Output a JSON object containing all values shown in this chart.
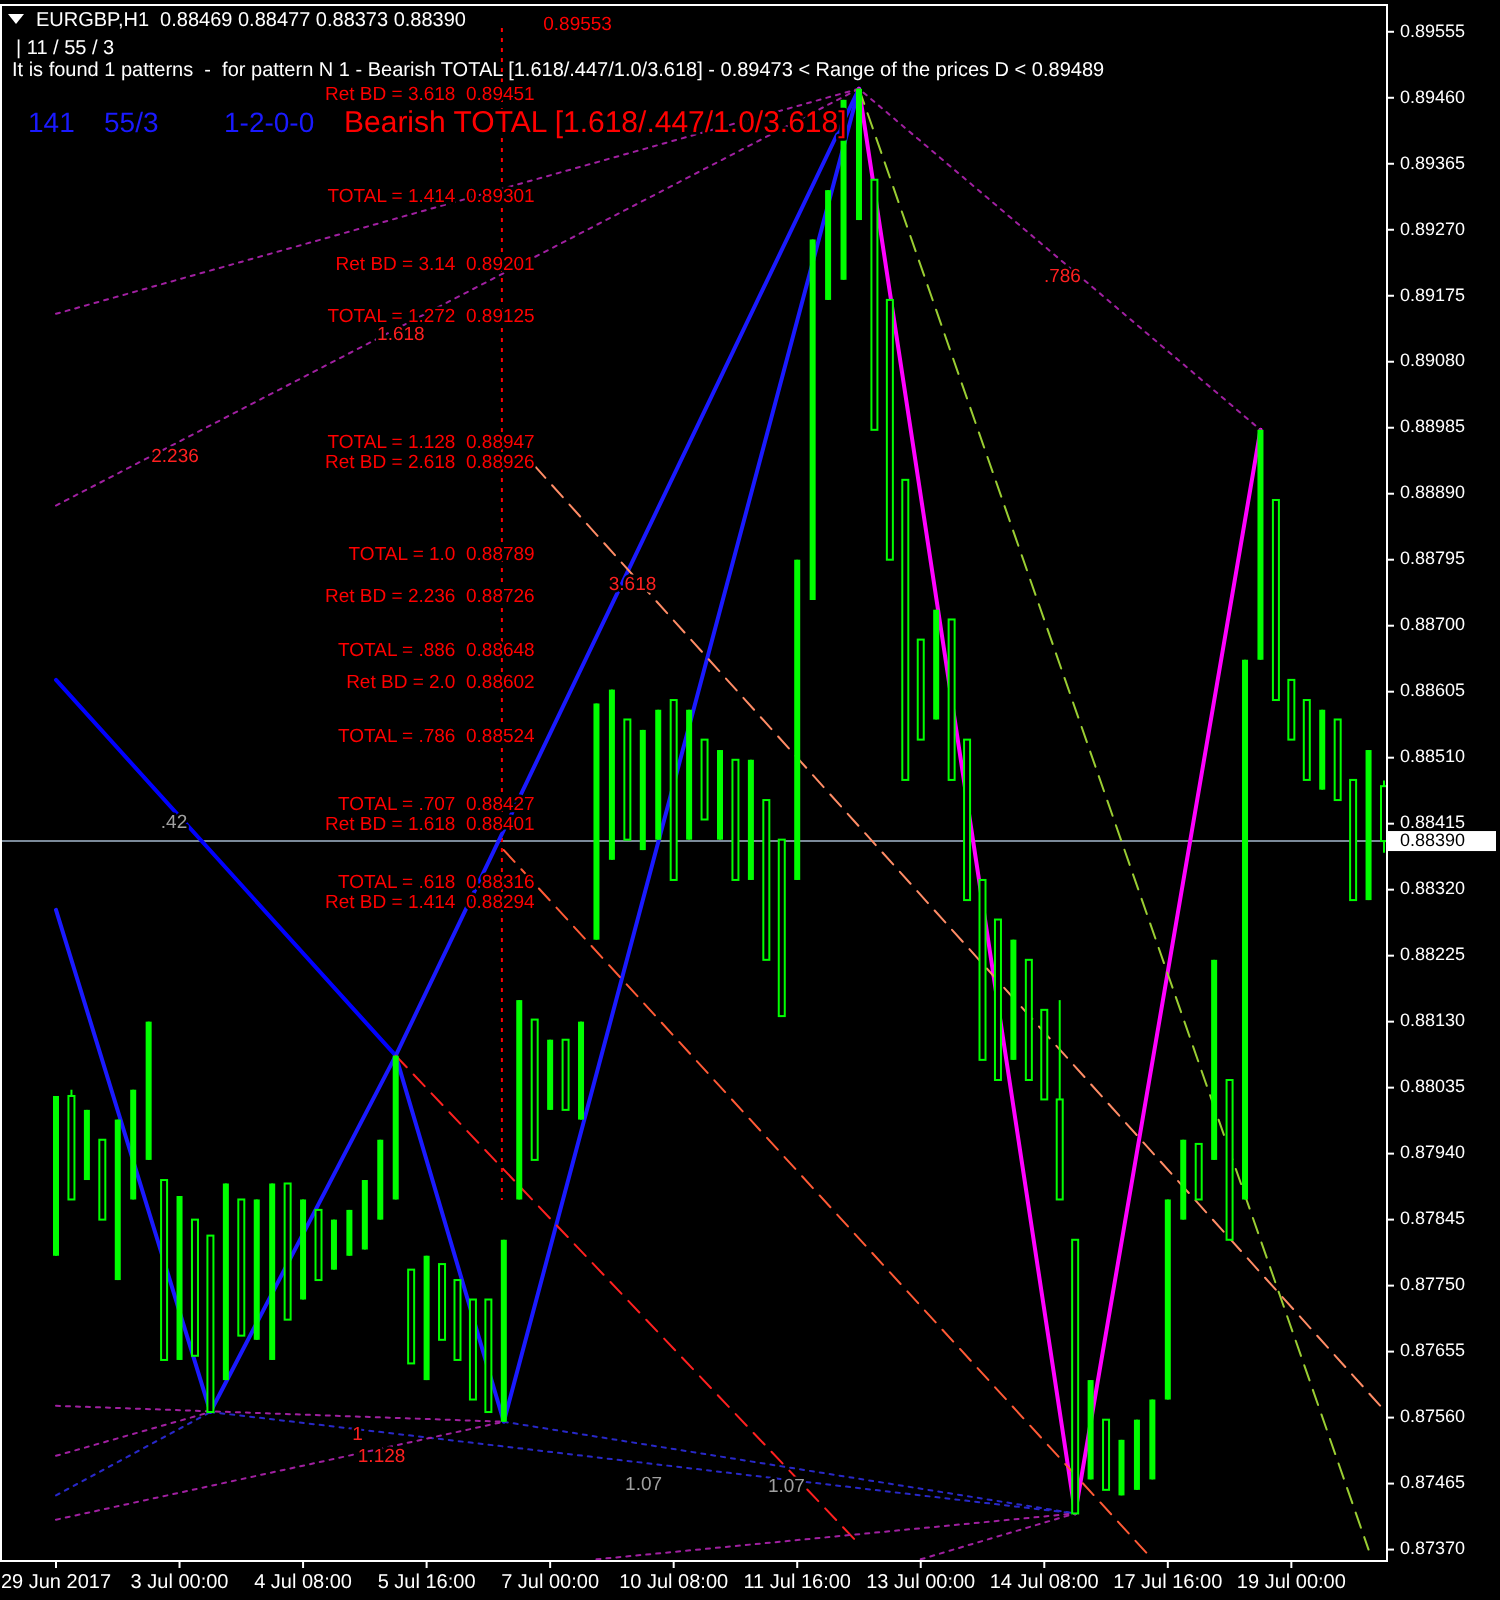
{
  "chart_data": {
    "type": "candlestick",
    "title": "EURGBP,H1  0.88469 0.88477 0.88373 0.88390",
    "subtitle": "| 11 / 55 / 3",
    "color": "#00ff00",
    "categories": [
      "29 Jun 2017",
      null,
      null,
      null,
      null,
      null,
      null,
      null,
      "3 Jul 00:00",
      null,
      null,
      null,
      null,
      null,
      null,
      null,
      "4 Jul 08:00",
      null,
      null,
      null,
      null,
      null,
      null,
      null,
      "5 Jul 16:00",
      null,
      null,
      null,
      null,
      null,
      null,
      null,
      "7 Jul 00:00",
      null,
      null,
      null,
      null,
      null,
      null,
      null,
      "10 Jul 08:00",
      null,
      null,
      null,
      null,
      null,
      null,
      null,
      "11 Jul 16:00",
      null,
      null,
      null,
      null,
      null,
      null,
      null,
      "13 Jul 00:00",
      null,
      null,
      null,
      null,
      null,
      null,
      null,
      "14 Jul 08:00",
      null,
      null,
      null,
      null,
      null,
      null,
      null,
      "17 Jul 16:00",
      null,
      null,
      null,
      null,
      null,
      null,
      null,
      "19 Jul 00:00",
      null,
      null,
      null,
      null,
      null,
      null
    ],
    "ohlc": [
      [
        0.87793,
        0.88023,
        0.87793,
        0.88023
      ],
      [
        0.88023,
        0.88032,
        0.87874,
        0.87874
      ],
      [
        0.87902,
        0.88003,
        0.87902,
        0.88003
      ],
      [
        0.8796,
        0.8796,
        0.87845,
        0.87845
      ],
      [
        0.87758,
        0.87989,
        0.87758,
        0.87989
      ],
      [
        0.87874,
        0.88032,
        0.87874,
        0.88032
      ],
      [
        0.87931,
        0.8813,
        0.87931,
        0.8813
      ],
      [
        0.87902,
        0.87902,
        0.87643,
        0.87643
      ],
      [
        0.87643,
        0.87879,
        0.87643,
        0.87879
      ],
      [
        0.87845,
        0.87845,
        0.87649,
        0.87649
      ],
      [
        0.87822,
        0.87822,
        0.87568,
        0.87568
      ],
      [
        0.87614,
        0.87897,
        0.87614,
        0.87897
      ],
      [
        0.87874,
        0.87874,
        0.87678,
        0.87678
      ],
      [
        0.87672,
        0.87874,
        0.87672,
        0.87874
      ],
      [
        0.87643,
        0.87897,
        0.87643,
        0.87897
      ],
      [
        0.87897,
        0.87897,
        0.87701,
        0.87701
      ],
      [
        0.8773,
        0.87874,
        0.8773,
        0.87874
      ],
      [
        0.87859,
        0.87859,
        0.87758,
        0.87758
      ],
      [
        0.87773,
        0.87845,
        0.87773,
        0.87845
      ],
      [
        0.87793,
        0.87859,
        0.87793,
        0.87859
      ],
      [
        0.87802,
        0.87902,
        0.87802,
        0.87902
      ],
      [
        0.87845,
        0.8796,
        0.87845,
        0.8796
      ],
      [
        0.87874,
        0.88081,
        0.87874,
        0.88081
      ],
      [
        0.87773,
        0.87773,
        0.87638,
        0.87638
      ],
      [
        0.87614,
        0.87793,
        0.87614,
        0.87793
      ],
      [
        0.87781,
        0.87781,
        0.87672,
        0.87672
      ],
      [
        0.87758,
        0.87758,
        0.87643,
        0.87643
      ],
      [
        0.8773,
        0.8773,
        0.87586,
        0.87586
      ],
      [
        0.8773,
        0.8773,
        0.87568,
        0.87568
      ],
      [
        0.87554,
        0.87816,
        0.87554,
        0.87816
      ],
      [
        0.87874,
        0.88161,
        0.87874,
        0.88161
      ],
      [
        0.88133,
        0.88133,
        0.87931,
        0.87931
      ],
      [
        0.88003,
        0.88104,
        0.88003,
        0.88104
      ],
      [
        0.88104,
        0.88104,
        0.88003,
        0.88003
      ],
      [
        0.87989,
        0.8813,
        0.87989,
        0.8813
      ],
      [
        0.88248,
        0.88588,
        0.88248,
        0.88588
      ],
      [
        0.88363,
        0.88608,
        0.88363,
        0.88608
      ],
      [
        0.88565,
        0.88565,
        0.88392,
        0.88392
      ],
      [
        0.88377,
        0.8855,
        0.88377,
        0.8855
      ],
      [
        0.88392,
        0.88579,
        0.88392,
        0.88579
      ],
      [
        0.88593,
        0.88593,
        0.88334,
        0.88334
      ],
      [
        0.88392,
        0.88579,
        0.88392,
        0.88579
      ],
      [
        0.88536,
        0.88536,
        0.88421,
        0.88421
      ],
      [
        0.88392,
        0.88521,
        0.88392,
        0.88521
      ],
      [
        0.88507,
        0.88507,
        0.88334,
        0.88334
      ],
      [
        0.88334,
        0.88507,
        0.88334,
        0.88507
      ],
      [
        0.88449,
        0.88449,
        0.88219,
        0.88219
      ],
      [
        0.88392,
        0.88392,
        0.88138,
        0.88138
      ],
      [
        0.88334,
        0.88795,
        0.88334,
        0.88795
      ],
      [
        0.88737,
        0.89256,
        0.88737,
        0.89256
      ],
      [
        0.89169,
        0.89327,
        0.89169,
        0.89327
      ],
      [
        0.89198,
        0.89457,
        0.89198,
        0.89457
      ],
      [
        0.89284,
        0.89473,
        0.89284,
        0.89473
      ],
      [
        0.89342,
        0.89342,
        0.88982,
        0.88982
      ],
      [
        0.89169,
        0.89169,
        0.88795,
        0.88795
      ],
      [
        0.8891,
        0.8891,
        0.88478,
        0.88478
      ],
      [
        0.8868,
        0.8868,
        0.88536,
        0.88536
      ],
      [
        0.88565,
        0.88723,
        0.88565,
        0.88723
      ],
      [
        0.88709,
        0.88709,
        0.88478,
        0.88478
      ],
      [
        0.88536,
        0.88536,
        0.88305,
        0.88305
      ],
      [
        0.88334,
        0.88334,
        0.88075,
        0.88075
      ],
      [
        0.88277,
        0.88277,
        0.88046,
        0.88046
      ],
      [
        0.88075,
        0.88248,
        0.88075,
        0.88248
      ],
      [
        0.88219,
        0.88219,
        0.88046,
        0.88046
      ],
      [
        0.88147,
        0.88147,
        0.88018,
        0.88018
      ],
      [
        0.88018,
        0.88161,
        0.87874,
        0.87874
      ],
      [
        0.87816,
        0.87816,
        0.87422,
        0.87422
      ],
      [
        0.87471,
        0.87614,
        0.87471,
        0.87614
      ],
      [
        0.87557,
        0.87557,
        0.87456,
        0.87456
      ],
      [
        0.87448,
        0.87528,
        0.87448,
        0.87528
      ],
      [
        0.87456,
        0.87557,
        0.87456,
        0.87557
      ],
      [
        0.87471,
        0.87586,
        0.87471,
        0.87586
      ],
      [
        0.87586,
        0.87874,
        0.87586,
        0.87874
      ],
      [
        0.87845,
        0.8796,
        0.87845,
        0.8796
      ],
      [
        0.87954,
        0.87954,
        0.87874,
        0.87874
      ],
      [
        0.87931,
        0.88219,
        0.87931,
        0.88219
      ],
      [
        0.88046,
        0.88046,
        0.87816,
        0.87816
      ],
      [
        0.87874,
        0.88651,
        0.87874,
        0.88651
      ],
      [
        0.88651,
        0.88982,
        0.88651,
        0.88982
      ],
      [
        0.88881,
        0.88881,
        0.88593,
        0.88593
      ],
      [
        0.88622,
        0.88622,
        0.88536,
        0.88536
      ],
      [
        0.88593,
        0.88593,
        0.88478,
        0.88478
      ],
      [
        0.88464,
        0.88579,
        0.88464,
        0.88579
      ],
      [
        0.88565,
        0.88565,
        0.88449,
        0.88449
      ],
      [
        0.88478,
        0.88478,
        0.88305,
        0.88305
      ],
      [
        0.88305,
        0.88521,
        0.88305,
        0.88521
      ],
      [
        0.88469,
        0.88477,
        0.88373,
        0.8839
      ]
    ],
    "series": [
      {
        "type": "line",
        "color": "#0000ff",
        "line_style": "solid",
        "values": [
          0.88622,
          null,
          null,
          null,
          null,
          null,
          null,
          null,
          null,
          null,
          null,
          null,
          null,
          null,
          null,
          null,
          null,
          null,
          null,
          null,
          null,
          null,
          0.88081,
          null,
          null,
          null,
          null,
          null,
          null,
          null,
          null,
          null,
          null,
          null,
          null,
          null,
          null,
          null,
          null,
          null,
          null,
          null,
          null,
          null,
          null,
          null,
          null,
          null,
          null,
          null,
          null,
          null,
          null,
          null,
          null,
          null,
          null,
          null,
          null,
          null,
          null,
          null,
          null,
          null,
          null,
          null,
          null,
          null,
          null,
          null,
          null,
          null,
          null,
          null,
          null,
          null,
          null,
          null,
          null,
          null,
          null,
          null,
          null,
          null,
          null,
          null,
          null
        ]
      },
      {
        "type": "line",
        "color": "#1a1aff",
        "line_style": "solid",
        "values": [
          0.88291,
          null,
          null,
          null,
          null,
          null,
          null,
          null,
          null,
          null,
          0.87568,
          null,
          null,
          null,
          null,
          null,
          null,
          null,
          null,
          null,
          null,
          null,
          0.88081,
          null,
          null,
          null,
          null,
          null,
          null,
          0.87554,
          null,
          null,
          null,
          null,
          null,
          null,
          null,
          null,
          null,
          null,
          null,
          null,
          null,
          null,
          null,
          null,
          null,
          null,
          null,
          null,
          null,
          null,
          0.89473,
          null,
          null,
          null,
          null,
          null,
          null,
          null,
          null,
          null,
          null,
          null,
          null,
          null,
          null,
          null,
          null,
          null,
          null,
          null,
          null,
          null,
          null,
          null,
          null,
          null,
          null,
          null,
          null,
          null,
          null,
          null,
          null,
          null,
          null
        ]
      },
      {
        "type": "line",
        "color": "#1a1aff",
        "line_style": "solid",
        "values": [
          null,
          null,
          null,
          null,
          null,
          null,
          null,
          null,
          null,
          null,
          null,
          null,
          null,
          null,
          null,
          null,
          null,
          null,
          null,
          null,
          null,
          null,
          0.88081,
          null,
          null,
          null,
          null,
          null,
          null,
          null,
          null,
          null,
          null,
          null,
          null,
          null,
          null,
          null,
          null,
          null,
          null,
          null,
          null,
          null,
          null,
          null,
          null,
          null,
          null,
          null,
          null,
          null,
          0.89473,
          null,
          null,
          null,
          null,
          null,
          null,
          null,
          null,
          null,
          null,
          null,
          null,
          null,
          null,
          null,
          null,
          null,
          null,
          null,
          null,
          null,
          null,
          null,
          null,
          null,
          null,
          null,
          null,
          null,
          null,
          null,
          null,
          null,
          null
        ]
      },
      {
        "type": "line",
        "color": "#ff00ff",
        "line_style": "solid",
        "values": [
          null,
          null,
          null,
          null,
          null,
          null,
          null,
          null,
          null,
          null,
          null,
          null,
          null,
          null,
          null,
          null,
          null,
          null,
          null,
          null,
          null,
          null,
          null,
          null,
          null,
          null,
          null,
          null,
          null,
          null,
          null,
          null,
          null,
          null,
          null,
          null,
          null,
          null,
          null,
          null,
          null,
          null,
          null,
          null,
          null,
          null,
          null,
          null,
          null,
          null,
          null,
          null,
          0.89473,
          null,
          null,
          null,
          null,
          null,
          null,
          null,
          null,
          null,
          null,
          null,
          null,
          null,
          0.87422,
          null,
          null,
          null,
          null,
          null,
          null,
          null,
          null,
          null,
          null,
          null,
          0.88982,
          null,
          null,
          null,
          null,
          null,
          null,
          null,
          null
        ]
      },
      {
        "type": "line",
        "color": "#9acd32",
        "line_style": "dashed",
        "values": [
          null,
          null,
          null,
          null,
          null,
          null,
          null,
          null,
          null,
          null,
          null,
          null,
          null,
          null,
          null,
          null,
          null,
          null,
          null,
          null,
          null,
          null,
          null,
          null,
          null,
          null,
          null,
          null,
          null,
          null,
          null,
          null,
          null,
          null,
          null,
          null,
          null,
          null,
          null,
          null,
          null,
          null,
          null,
          null,
          null,
          null,
          null,
          null,
          null,
          null,
          null,
          null,
          0.89473,
          null,
          null,
          null,
          null,
          null,
          null,
          null,
          null,
          null,
          null,
          null,
          null,
          null,
          null,
          null,
          null,
          null,
          null,
          null,
          null,
          null,
          null,
          null,
          null,
          null,
          null,
          null,
          null,
          null,
          null,
          null,
          null,
          0.8737,
          null
        ]
      },
      {
        "type": "line",
        "color": "#ff8c66",
        "line_style": "dashed",
        "values": [
          null,
          null,
          null,
          null,
          null,
          null,
          null,
          null,
          null,
          null,
          null,
          null,
          null,
          null,
          null,
          null,
          null,
          null,
          null,
          null,
          null,
          null,
          null,
          null,
          null,
          null,
          null,
          null,
          null,
          null,
          null,
          0.8893,
          null,
          null,
          null,
          null,
          null,
          null,
          null,
          null,
          null,
          null,
          null,
          null,
          null,
          null,
          null,
          null,
          null,
          null,
          null,
          null,
          null,
          null,
          null,
          null,
          null,
          null,
          null,
          null,
          null,
          null,
          null,
          null,
          null,
          null,
          null,
          null,
          null,
          null,
          null,
          null,
          null,
          null,
          null,
          null,
          null,
          null,
          null,
          null,
          null,
          null,
          null,
          null,
          null,
          null,
          0.87571
        ]
      },
      {
        "type": "line",
        "color": "#ff5a36",
        "line_style": "dashed",
        "values": [
          null,
          null,
          null,
          null,
          null,
          null,
          null,
          null,
          null,
          null,
          null,
          null,
          null,
          null,
          null,
          null,
          null,
          null,
          null,
          null,
          null,
          null,
          null,
          null,
          null,
          null,
          null,
          null,
          null,
          0.88377,
          null,
          null,
          null,
          null,
          null,
          null,
          null,
          null,
          null,
          null,
          null,
          null,
          null,
          null,
          null,
          null,
          null,
          null,
          null,
          null,
          null,
          null,
          null,
          null,
          null,
          null,
          null,
          null,
          null,
          null,
          null,
          null,
          null,
          null,
          null,
          null,
          null,
          null,
          null,
          null,
          null,
          0.87356,
          null,
          null,
          null,
          null,
          null,
          null,
          null,
          null,
          null,
          null,
          null,
          null,
          null,
          null,
          null
        ]
      },
      {
        "type": "line",
        "color": "#ff2020",
        "line_style": "dashed",
        "values": [
          null,
          null,
          null,
          null,
          null,
          null,
          null,
          null,
          null,
          null,
          null,
          null,
          null,
          null,
          null,
          null,
          null,
          null,
          null,
          null,
          null,
          null,
          0.88081,
          null,
          null,
          null,
          null,
          null,
          null,
          null,
          null,
          null,
          null,
          null,
          null,
          null,
          null,
          null,
          null,
          null,
          null,
          null,
          null,
          null,
          null,
          null,
          null,
          null,
          null,
          null,
          null,
          null,
          0.87378,
          null,
          null,
          null,
          null,
          null,
          null,
          null,
          null,
          null,
          null,
          null,
          null,
          null,
          null,
          null,
          null,
          null,
          null,
          null,
          null,
          null,
          null,
          null,
          null,
          null,
          null,
          null,
          null,
          null,
          null,
          null,
          null,
          null,
          null
        ]
      },
      {
        "type": "line",
        "color": "#a020a0",
        "line_style": "dotted",
        "values": [
          0.89149,
          null,
          null,
          null,
          null,
          null,
          null,
          null,
          null,
          null,
          null,
          null,
          null,
          null,
          null,
          null,
          null,
          null,
          null,
          null,
          null,
          null,
          null,
          null,
          null,
          null,
          null,
          null,
          null,
          null,
          null,
          null,
          null,
          null,
          null,
          null,
          null,
          null,
          null,
          null,
          null,
          null,
          null,
          null,
          null,
          null,
          null,
          null,
          null,
          null,
          null,
          null,
          0.89473,
          null,
          null,
          null,
          null,
          null,
          null,
          null,
          null,
          null,
          null,
          null,
          null,
          null,
          null,
          null,
          null,
          null,
          null,
          null,
          null,
          null,
          null,
          null,
          null,
          null,
          0.88982,
          null,
          null,
          null,
          null,
          null,
          null,
          null,
          null
        ]
      },
      {
        "type": "line",
        "color": "#a020a0",
        "line_style": "dotted",
        "values": [
          0.88873,
          null,
          null,
          null,
          null,
          null,
          null,
          null,
          null,
          null,
          null,
          null,
          null,
          null,
          null,
          null,
          null,
          null,
          null,
          null,
          null,
          null,
          null,
          null,
          null,
          null,
          null,
          null,
          null,
          null,
          null,
          null,
          null,
          null,
          null,
          null,
          null,
          null,
          null,
          null,
          null,
          null,
          null,
          null,
          null,
          null,
          null,
          null,
          null,
          null,
          null,
          null,
          0.89473,
          null,
          null,
          null,
          null,
          null,
          null,
          null,
          null,
          null,
          null,
          null,
          null,
          null,
          null,
          null,
          null,
          null,
          null,
          null,
          null,
          null,
          null,
          null,
          null,
          null,
          null,
          null,
          null,
          null,
          null,
          null,
          null,
          null,
          null
        ]
      },
      {
        "type": "line",
        "color": "#a020a0",
        "line_style": "dotted",
        "values": [
          0.87577,
          null,
          null,
          null,
          null,
          null,
          null,
          null,
          null,
          null,
          null,
          null,
          null,
          null,
          null,
          null,
          null,
          null,
          null,
          null,
          null,
          null,
          null,
          null,
          null,
          null,
          null,
          null,
          null,
          0.87554,
          null,
          null,
          null,
          null,
          null,
          null,
          null,
          null,
          null,
          null,
          null,
          null,
          null,
          null,
          null,
          null,
          null,
          null,
          null,
          null,
          null,
          null,
          null,
          null,
          null,
          null,
          null,
          null,
          null,
          null,
          null,
          null,
          null,
          null,
          null,
          null,
          null,
          null,
          null,
          null,
          null,
          null,
          null,
          null,
          null,
          null,
          null,
          null,
          null,
          null,
          null,
          null,
          null,
          null,
          null,
          null,
          null
        ]
      },
      {
        "type": "line",
        "color": "#a020a0",
        "line_style": "dotted",
        "values": [
          0.87505,
          null,
          null,
          null,
          null,
          null,
          null,
          null,
          null,
          null,
          0.87568,
          null,
          null,
          null,
          null,
          null,
          null,
          null,
          null,
          null,
          null,
          null,
          null,
          null,
          null,
          null,
          null,
          null,
          null,
          null,
          null,
          null,
          null,
          null,
          null,
          null,
          null,
          null,
          null,
          null,
          null,
          null,
          null,
          null,
          null,
          null,
          null,
          null,
          null,
          null,
          null,
          null,
          null,
          null,
          null,
          null,
          null,
          null,
          null,
          null,
          null,
          null,
          null,
          null,
          null,
          null,
          null,
          null,
          null,
          null,
          null,
          null,
          null,
          null,
          null,
          null,
          null,
          null,
          null,
          null,
          null,
          null,
          null,
          null,
          null,
          null,
          null
        ]
      },
      {
        "type": "line",
        "color": "#2828c8",
        "line_style": "dotted",
        "values": [
          0.87448,
          null,
          null,
          null,
          null,
          null,
          null,
          null,
          null,
          null,
          0.87568,
          null,
          null,
          null,
          null,
          null,
          null,
          null,
          null,
          null,
          null,
          null,
          null,
          null,
          null,
          null,
          null,
          null,
          null,
          null,
          null,
          null,
          null,
          null,
          null,
          null,
          null,
          null,
          null,
          null,
          null,
          null,
          null,
          null,
          null,
          null,
          null,
          null,
          null,
          null,
          null,
          null,
          null,
          null,
          null,
          null,
          null,
          null,
          null,
          null,
          null,
          null,
          null,
          null,
          null,
          null,
          null,
          null,
          null,
          null,
          null,
          null,
          null,
          null,
          null,
          null,
          null,
          null,
          null,
          null,
          null,
          null,
          null,
          null,
          null,
          null,
          null
        ]
      },
      {
        "type": "line",
        "color": "#2828c8",
        "line_style": "dotted",
        "values": [
          null,
          null,
          null,
          null,
          null,
          null,
          null,
          null,
          null,
          null,
          0.87568,
          null,
          null,
          null,
          null,
          null,
          null,
          null,
          null,
          null,
          null,
          null,
          null,
          null,
          null,
          null,
          null,
          null,
          null,
          null,
          null,
          null,
          null,
          null,
          null,
          null,
          null,
          null,
          null,
          null,
          null,
          null,
          null,
          null,
          null,
          null,
          null,
          null,
          null,
          null,
          null,
          null,
          null,
          null,
          null,
          null,
          null,
          null,
          null,
          null,
          null,
          null,
          null,
          null,
          null,
          null,
          0.87422,
          null,
          null,
          null,
          null,
          null,
          null,
          null,
          null,
          null,
          null,
          null,
          null,
          null,
          null,
          null,
          null,
          null,
          null,
          null,
          null
        ]
      },
      {
        "type": "line",
        "color": "#2828c8",
        "line_style": "dotted",
        "values": [
          null,
          null,
          null,
          null,
          null,
          null,
          null,
          null,
          null,
          null,
          null,
          null,
          null,
          null,
          null,
          null,
          null,
          null,
          null,
          null,
          null,
          null,
          null,
          null,
          null,
          null,
          null,
          null,
          null,
          0.87554,
          null,
          null,
          null,
          null,
          null,
          null,
          null,
          null,
          null,
          null,
          null,
          null,
          null,
          null,
          null,
          null,
          null,
          null,
          null,
          null,
          null,
          null,
          null,
          null,
          null,
          null,
          null,
          null,
          null,
          null,
          null,
          null,
          null,
          null,
          null,
          null,
          0.87422,
          null,
          null,
          null,
          null,
          null,
          null,
          null,
          null,
          null,
          null,
          null,
          null,
          null,
          null,
          null,
          null,
          null,
          null,
          null,
          null
        ]
      },
      {
        "type": "line",
        "color": "#a020a0",
        "line_style": "dotted",
        "values": [
          null,
          null,
          null,
          null,
          null,
          null,
          null,
          null,
          null,
          null,
          null,
          null,
          null,
          null,
          null,
          null,
          null,
          null,
          null,
          null,
          null,
          null,
          null,
          null,
          null,
          null,
          null,
          null,
          null,
          null,
          null,
          null,
          null,
          null,
          null,
          0.87356,
          null,
          null,
          null,
          null,
          null,
          null,
          null,
          null,
          null,
          null,
          null,
          null,
          null,
          null,
          null,
          null,
          null,
          null,
          null,
          null,
          null,
          null,
          null,
          null,
          null,
          null,
          null,
          null,
          null,
          null,
          0.87422,
          null,
          null,
          null,
          null,
          null,
          null,
          null,
          null,
          null,
          null,
          null,
          null,
          null,
          null,
          null,
          null,
          null,
          null,
          null,
          null
        ]
      },
      {
        "type": "line",
        "color": "#a020a0",
        "line_style": "dotted",
        "values": [
          null,
          null,
          null,
          null,
          null,
          null,
          null,
          null,
          null,
          null,
          null,
          null,
          null,
          null,
          null,
          null,
          null,
          null,
          null,
          null,
          null,
          null,
          null,
          null,
          null,
          null,
          null,
          null,
          null,
          null,
          null,
          null,
          null,
          null,
          null,
          null,
          null,
          null,
          null,
          null,
          null,
          null,
          null,
          null,
          null,
          null,
          null,
          null,
          null,
          null,
          null,
          null,
          null,
          null,
          null,
          null,
          0.87356,
          null,
          null,
          null,
          null,
          null,
          null,
          null,
          null,
          null,
          0.87422,
          null,
          null,
          null,
          null,
          null,
          null,
          null,
          null,
          null,
          null,
          null,
          null,
          null,
          null,
          null,
          null,
          null,
          null,
          null,
          null
        ]
      },
      {
        "type": "line",
        "color": "#a020a0",
        "line_style": "dotted",
        "values": [
          0.87413,
          null,
          null,
          null,
          null,
          null,
          null,
          null,
          null,
          null,
          null,
          null,
          null,
          null,
          null,
          null,
          null,
          null,
          null,
          null,
          null,
          null,
          null,
          null,
          null,
          null,
          null,
          null,
          null,
          0.87554,
          null,
          null,
          null,
          null,
          null,
          null,
          null,
          null,
          null,
          null,
          null,
          null,
          null,
          null,
          null,
          null,
          null,
          null,
          null,
          null,
          null,
          null,
          null,
          null,
          null,
          null,
          null,
          null,
          null,
          null,
          null,
          null,
          null,
          null,
          null,
          null,
          null,
          null,
          null,
          null,
          null,
          null,
          null,
          null,
          null,
          null,
          null,
          null,
          null,
          null,
          null,
          null,
          null,
          null,
          null,
          null,
          null
        ]
      }
    ],
    "ref_lines": [
      {
        "axis": "y",
        "value": 0.8839,
        "label": "0.88390",
        "color": "#7b8a99"
      }
    ],
    "annotations": [
      "It is found 1 patterns  -  for pattern N 1 - Bearish TOTAL [1.618/.447/1.0/3.618] - 0.89473 < Range of the prices D < 0.89489",
      "141",
      "55/3",
      "1-2-0-0",
      "Bearish TOTAL [1.618/.447/1.0/3.618]",
      "0.89553",
      "Ret BD = 3.618  0.89451",
      "TOTAL = 1.414  0.89301",
      "Ret BD = 3.14  0.89201",
      "TOTAL = 1.272  0.89125",
      "TOTAL = 1.128  0.88947",
      "Ret BD = 2.618  0.88926",
      "TOTAL = 1.0  0.88789",
      "Ret BD = 2.236  0.88726",
      "TOTAL = .886  0.88648",
      "Ret BD = 2.0  0.88602",
      "TOTAL = .786  0.88524",
      "TOTAL = .707  0.88427",
      "Ret BD = 1.618  0.88401",
      "TOTAL = .618  0.88316",
      "Ret BD = 1.414  0.88294",
      ".42",
      "2.236",
      "1.618",
      "3.618",
      ".786",
      "1",
      "1.128",
      "1.07",
      "1.07"
    ],
    "ylim": [
      0.87355,
      0.89595
    ],
    "yticks": [
      0.89555,
      {
        "value": 0.8946,
        "label": "0.89460"
      },
      0.89365,
      {
        "value": 0.8927,
        "label": "0.89270"
      },
      0.89175,
      {
        "value": 0.8908,
        "label": "0.89080"
      },
      0.88985,
      {
        "value": 0.8889,
        "label": "0.88890"
      },
      0.88795,
      {
        "value": 0.887,
        "label": "0.88700"
      },
      0.88605,
      {
        "value": 0.8851,
        "label": "0.88510"
      },
      0.88415,
      {
        "value": 0.8832,
        "label": "0.88320"
      },
      0.88225,
      {
        "value": 0.8813,
        "label": "0.88130"
      },
      0.88035,
      {
        "value": 0.8794,
        "label": "0.87940"
      },
      0.87845,
      {
        "value": 0.8775,
        "label": "0.87750"
      },
      0.87655,
      {
        "value": 0.8756,
        "label": "0.87560"
      },
      0.87465,
      {
        "value": 0.8737,
        "label": "0.87370"
      }
    ]
  }
}
